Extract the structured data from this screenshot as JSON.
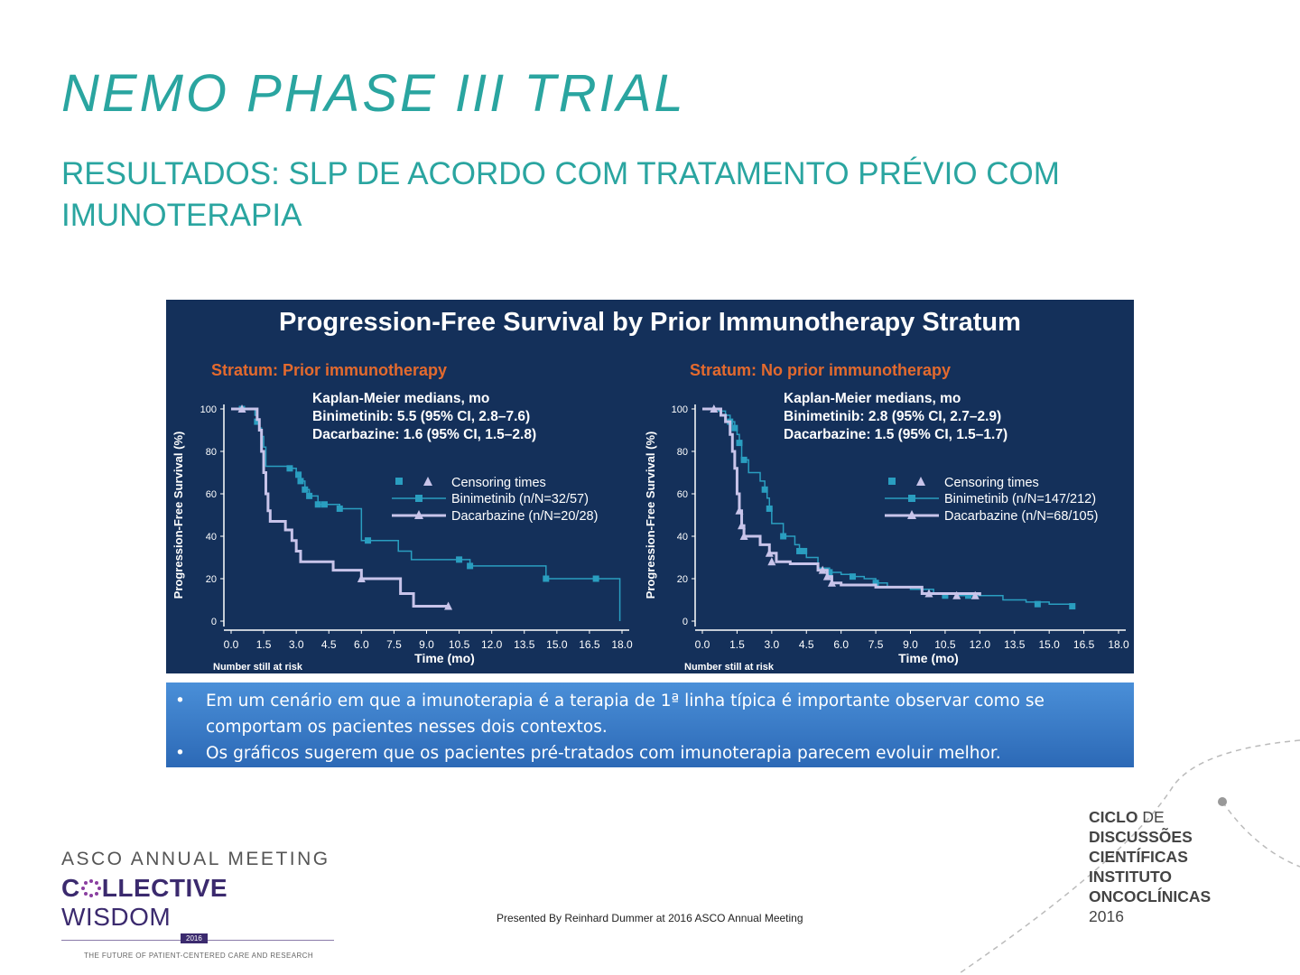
{
  "title": "NEMO PHASE III TRIAL",
  "subtitle": "RESULTADOS: SLP DE ACORDO COM TRATAMENTO PRÉVIO COM IMUNOTERAPIA",
  "chart_panel_title": "Progression-Free Survival by Prior Immunotherapy Stratum",
  "chart_data": [
    {
      "type": "line",
      "title": "Stratum: Prior immunotherapy",
      "xlabel": "Time (mo)",
      "ylabel": "Progression-Free Survival (%)",
      "xlim": [
        0,
        18
      ],
      "ylim": [
        0,
        100
      ],
      "xticks": [
        "0.0",
        "1.5",
        "3.0",
        "4.5",
        "6.0",
        "7.5",
        "9.0",
        "10.5",
        "12.0",
        "13.5",
        "15.0",
        "16.5",
        "18.0"
      ],
      "yticks": [
        "0",
        "20",
        "40",
        "60",
        "80",
        "100"
      ],
      "risk_label": "Number still at risk",
      "medians_title": "Kaplan-Meier medians, mo",
      "medians": [
        "Binimetinib: 5.5 (95% CI, 2.8–7.6)",
        "Dacarbazine: 1.6 (95% CI, 1.5–2.8)"
      ],
      "legend": [
        "Censoring times",
        "Binimetinib (n/N=32/57)",
        "Dacarbazine (n/N=20/28)"
      ],
      "series": [
        {
          "name": "Binimetinib (n/N=32/57)",
          "color": "#2a9ec0",
          "x": [
            0,
            1.0,
            1.1,
            1.2,
            1.3,
            1.4,
            1.5,
            1.6,
            2.5,
            2.7,
            3.0,
            3.2,
            3.4,
            3.6,
            4.0,
            5.0,
            6.0,
            6.5,
            7.5,
            7.7,
            8.0,
            8.3,
            10.5,
            11.0,
            12.0,
            12.3,
            14.5,
            16.0,
            17.5,
            17.9
          ],
          "y": [
            100,
            100,
            97,
            94,
            91,
            87,
            82,
            73,
            73,
            72,
            69,
            66,
            62,
            59,
            55,
            53,
            38,
            38,
            38,
            33,
            33,
            29,
            29,
            26,
            26,
            26,
            20,
            20,
            20,
            0
          ],
          "censor_x": [
            0.5,
            1.2,
            2.7,
            3.1,
            3.2,
            3.4,
            3.6,
            4.0,
            4.3,
            5.0,
            6.3,
            10.5,
            11.0,
            14.5,
            16.8
          ],
          "censor_y": [
            100,
            94,
            72,
            69,
            66,
            62,
            59,
            55,
            55,
            53,
            38,
            29,
            26,
            20,
            20
          ]
        },
        {
          "name": "Dacarbazine (n/N=20/28)",
          "color": "#c8c4ea",
          "x": [
            0,
            1.0,
            1.2,
            1.3,
            1.4,
            1.5,
            1.6,
            1.7,
            1.8,
            2.5,
            2.8,
            3.0,
            3.2,
            4.5,
            4.7,
            5.0,
            6.0,
            6.5,
            7.6,
            7.8,
            8.4,
            9.2,
            10.0
          ],
          "y": [
            100,
            100,
            95,
            90,
            80,
            70,
            60,
            52,
            47,
            43,
            38,
            33,
            28,
            28,
            24,
            24,
            20,
            20,
            20,
            13,
            7,
            7,
            7
          ],
          "censor_x": [
            0.5,
            6.0,
            10.0
          ],
          "censor_y": [
            100,
            20,
            7
          ]
        }
      ]
    },
    {
      "type": "line",
      "title": "Stratum: No prior immunotherapy",
      "xlabel": "Time (mo)",
      "ylabel": "Progression-Free Survival (%)",
      "xlim": [
        0,
        18
      ],
      "ylim": [
        0,
        100
      ],
      "xticks": [
        "0.0",
        "1.5",
        "3.0",
        "4.5",
        "6.0",
        "7.5",
        "9.0",
        "10.5",
        "12.0",
        "13.5",
        "15.0",
        "16.5",
        "18.0"
      ],
      "yticks": [
        "0",
        "20",
        "40",
        "60",
        "80",
        "100"
      ],
      "risk_label": "Number still at risk",
      "medians_title": "Kaplan-Meier medians, mo",
      "medians": [
        "Binimetinib: 2.8 (95% CI, 2.7–2.9)",
        "Dacarbazine: 1.5 (95% CI, 1.5–1.7)"
      ],
      "legend": [
        "Censoring times",
        "Binimetinib (n/N=147/212)",
        "Dacarbazine (n/N=68/105)"
      ],
      "series": [
        {
          "name": "Binimetinib (n/N=147/212)",
          "color": "#2a9ec0",
          "x": [
            0,
            0.7,
            1.0,
            1.2,
            1.4,
            1.5,
            1.6,
            1.7,
            2.0,
            2.5,
            2.7,
            2.8,
            2.9,
            3.0,
            3.5,
            4.0,
            4.2,
            4.5,
            5.0,
            5.5,
            6.0,
            6.5,
            7.0,
            7.5,
            8.0,
            9.0,
            10.0,
            11.0,
            12.0,
            13.0,
            14.0,
            15.0,
            16.0
          ],
          "y": [
            100,
            99,
            97,
            94,
            91,
            88,
            84,
            76,
            70,
            66,
            62,
            58,
            53,
            46,
            40,
            36,
            33,
            30,
            25,
            23,
            22,
            21,
            20,
            18,
            16,
            15,
            13,
            12,
            12,
            10,
            9,
            8,
            7
          ],
          "censor_x": [
            1.2,
            1.4,
            1.6,
            1.8,
            2.7,
            2.9,
            3.5,
            4.2,
            4.4,
            5.5,
            6.5,
            7.5,
            10.5,
            11.5,
            14.5,
            16.0
          ],
          "censor_y": [
            94,
            91,
            84,
            76,
            62,
            53,
            40,
            33,
            33,
            23,
            21,
            18,
            12,
            12,
            8,
            7
          ]
        },
        {
          "name": "Dacarbazine (n/N=68/105)",
          "color": "#c8c4ea",
          "x": [
            0,
            0.8,
            1.0,
            1.2,
            1.3,
            1.4,
            1.5,
            1.6,
            1.7,
            1.8,
            2.5,
            2.9,
            3.2,
            3.8,
            5.0,
            5.4,
            5.6,
            6.0,
            7.5,
            9.5,
            12.0
          ],
          "y": [
            100,
            97,
            94,
            88,
            80,
            72,
            60,
            52,
            45,
            40,
            36,
            32,
            28,
            27,
            24,
            21,
            18,
            17,
            16,
            13,
            12
          ],
          "censor_x": [
            0.5,
            1.6,
            1.7,
            1.8,
            2.9,
            3.0,
            5.2,
            5.4,
            5.6,
            9.8,
            11.0,
            11.8
          ],
          "censor_y": [
            100,
            52,
            45,
            40,
            32,
            28,
            24,
            21,
            18,
            13,
            12,
            12
          ]
        }
      ]
    }
  ],
  "bullets": [
    "Em um cenário em que a imunoterapia é a terapia de 1ª linha típica é importante observar como se comportam os pacientes  nesses dois contextos.",
    "Os gráficos sugerem que os pacientes pré-tratados com imunoterapia  parecem evoluir melhor."
  ],
  "bullet_symbol": "•",
  "footer": "Presented By Reinhard Dummer at 2016 ASCO Annual Meeting",
  "asco_logo": {
    "line1": "ASCO ANNUAL MEETING",
    "line2a": "C",
    "line2b": "LLECTIVE",
    "line2c": " WISDOM",
    "year": "2016",
    "line3": "THE FUTURE OF PATIENT-CENTERED CARE AND RESEARCH"
  },
  "ciclo_logo": {
    "l1a": "CICLO",
    "l1b": " DE",
    "l2": "DISCUSSÕES",
    "l3": "CIENTÍFICAS",
    "l4": "INSTITUTO",
    "l5": "ONCOCLÍNICAS",
    "l6": "2016"
  },
  "colors": {
    "accent": "#2aa5a0",
    "panel_bg": "#14305a",
    "stratum_title": "#e46a2e",
    "binimetinib": "#2a9ec0",
    "dacarbazine": "#c8c4ea",
    "bullet_box": "#3a7ccb"
  }
}
